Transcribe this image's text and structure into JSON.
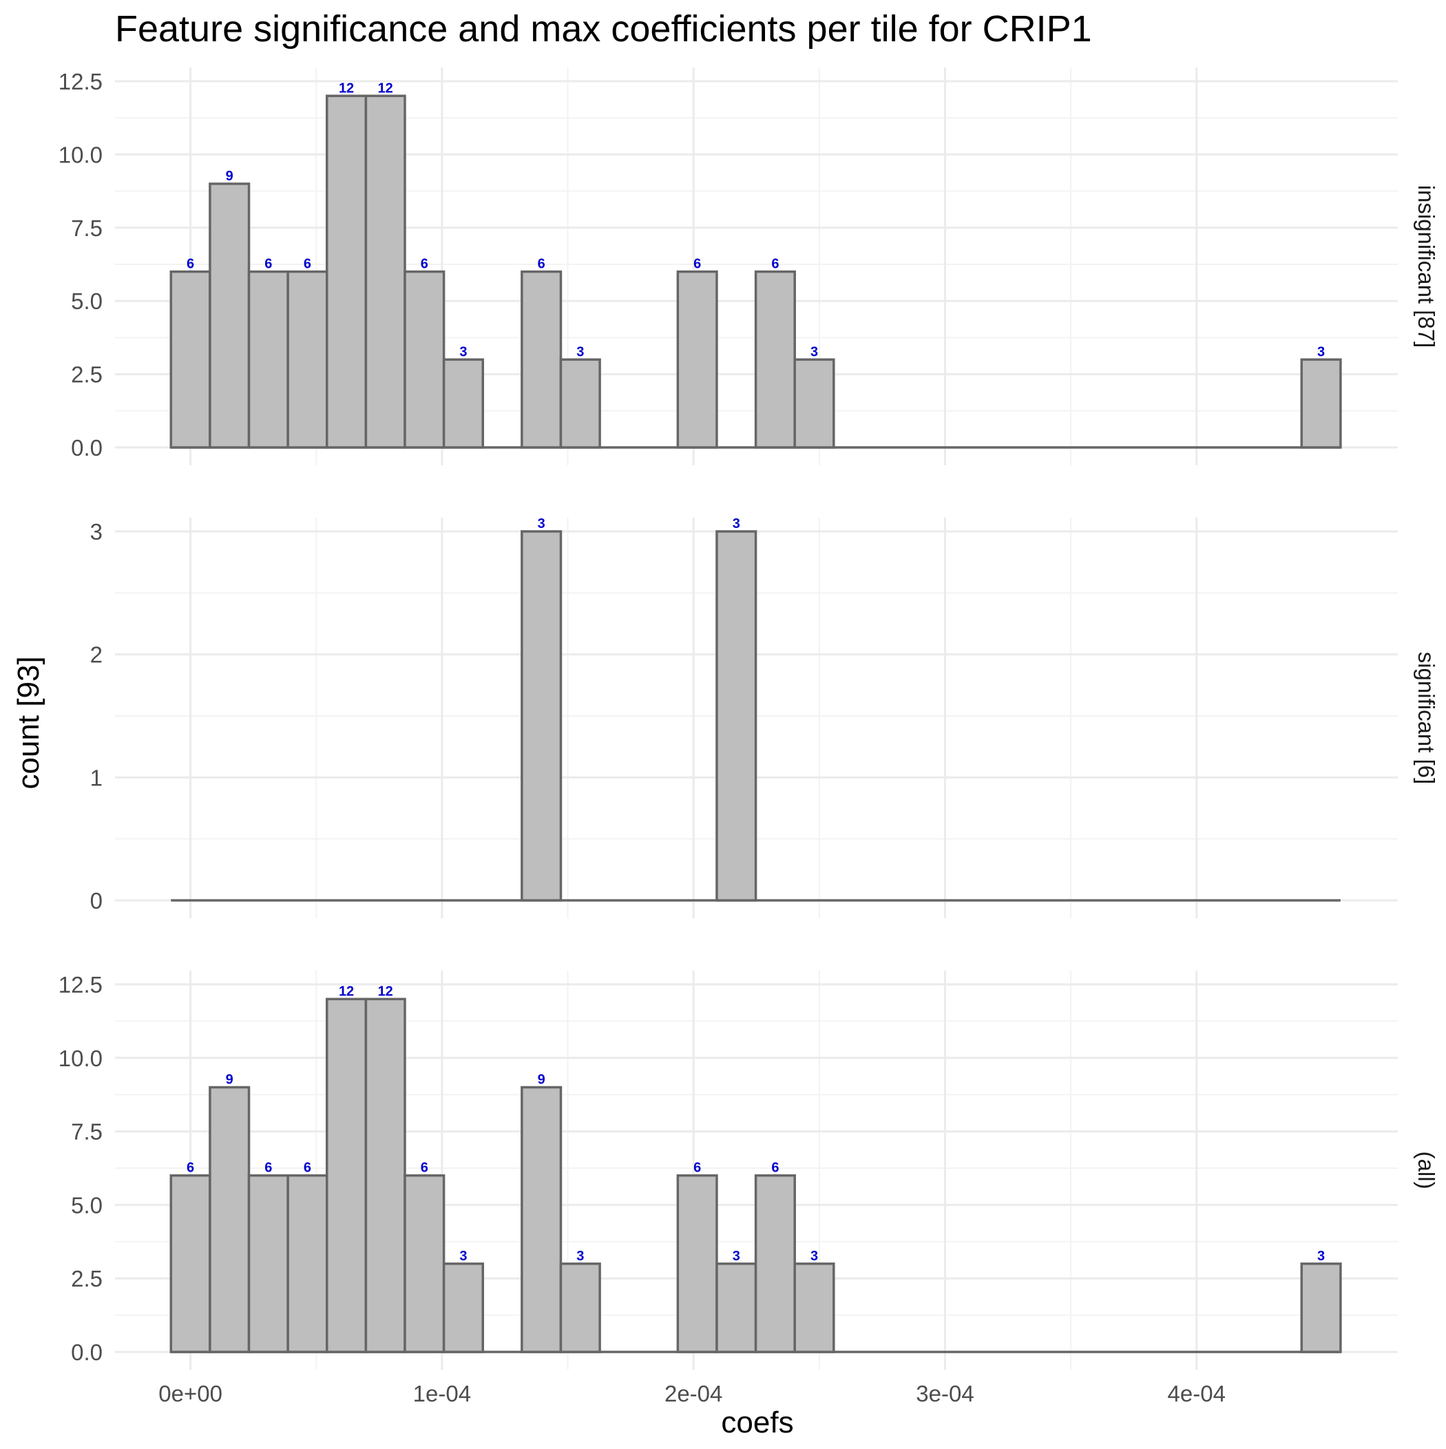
{
  "chart_data": {
    "type": "bar",
    "title": "Feature significance and max coefficients per tile for CRIP1",
    "xlabel": "coefs",
    "ylabel": "count [93]",
    "x_tick_labels": [
      "0e+00",
      "1e-04",
      "2e-04",
      "3e-04",
      "4e-04"
    ],
    "x_ticks": [
      0,
      0.0001,
      0.0002,
      0.0003,
      0.0004
    ],
    "xlim": [
      -3e-05,
      0.00048
    ],
    "bin_width": 1.55e-05,
    "bin_centers": [
      0,
      1.55e-05,
      3.1e-05,
      4.65e-05,
      6.2e-05,
      7.75e-05,
      9.3e-05,
      0.0001085,
      0.000124,
      0.0001395,
      0.000155,
      0.0001705,
      0.000186,
      0.0002015,
      0.000217,
      0.0002325,
      0.000248,
      0.0002635,
      0.000279,
      0.0002945,
      0.00031,
      0.0003255,
      0.000341,
      0.0003565,
      0.000372,
      0.0003875,
      0.000403,
      0.0004185,
      0.000434,
      0.0004495
    ],
    "panels": [
      {
        "strip": "insignificant [87]",
        "y_tick_labels": [
          "0.0",
          "2.5",
          "5.0",
          "7.5",
          "10.0",
          "12.5"
        ],
        "y_ticks": [
          0,
          2.5,
          5,
          7.5,
          10,
          12.5
        ],
        "ylim": [
          0,
          12.5
        ],
        "values": [
          6,
          9,
          6,
          6,
          12,
          12,
          6,
          3,
          0,
          6,
          3,
          0,
          0,
          6,
          0,
          6,
          3,
          0,
          0,
          0,
          0,
          0,
          0,
          0,
          0,
          0,
          0,
          0,
          0,
          3
        ]
      },
      {
        "strip": "significant [6]",
        "y_tick_labels": [
          "0",
          "1",
          "2",
          "3"
        ],
        "y_ticks": [
          0,
          1,
          2,
          3
        ],
        "ylim": [
          0,
          3
        ],
        "values": [
          0,
          0,
          0,
          0,
          0,
          0,
          0,
          0,
          0,
          3,
          0,
          0,
          0,
          0,
          3,
          0,
          0,
          0,
          0,
          0,
          0,
          0,
          0,
          0,
          0,
          0,
          0,
          0,
          0,
          0
        ]
      },
      {
        "strip": "(all)",
        "y_tick_labels": [
          "0.0",
          "2.5",
          "5.0",
          "7.5",
          "10.0",
          "12.5"
        ],
        "y_ticks": [
          0,
          2.5,
          5,
          7.5,
          10,
          12.5
        ],
        "ylim": [
          0,
          12.5
        ],
        "values": [
          6,
          9,
          6,
          6,
          12,
          12,
          6,
          3,
          0,
          9,
          3,
          0,
          0,
          6,
          3,
          6,
          3,
          0,
          0,
          0,
          0,
          0,
          0,
          0,
          0,
          0,
          0,
          0,
          0,
          3
        ]
      }
    ],
    "grid": true,
    "colors": {
      "bar_fill": "#bebebe",
      "bar_stroke": "#666666",
      "label": "#0000cc",
      "grid_major": "#ebebeb",
      "grid_minor": "#f3f3f3"
    }
  }
}
